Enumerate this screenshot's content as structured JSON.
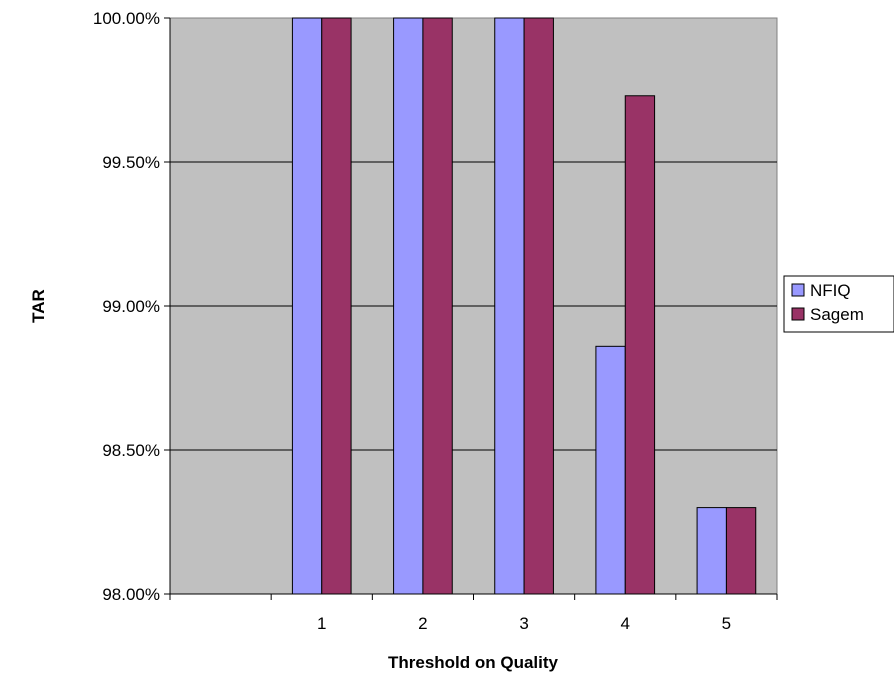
{
  "chart_data": {
    "type": "bar",
    "categories": [
      "",
      "1",
      "2",
      "3",
      "4",
      "5"
    ],
    "series": [
      {
        "name": "NFIQ",
        "color": "#9999ff",
        "values": [
          null,
          100.0,
          100.0,
          100.0,
          98.86,
          98.3
        ]
      },
      {
        "name": "Sagem",
        "color": "#993366",
        "values": [
          null,
          100.0,
          100.0,
          100.0,
          99.73,
          98.3
        ]
      }
    ],
    "xlabel": "Threshold on Quality",
    "ylabel": "TAR",
    "ylim": [
      98.0,
      100.0
    ],
    "yticks": [
      {
        "value": 98.0,
        "label": "98.00%"
      },
      {
        "value": 98.5,
        "label": "98.50%"
      },
      {
        "value": 99.0,
        "label": "99.00%"
      },
      {
        "value": 99.5,
        "label": "99.50%"
      },
      {
        "value": 100.0,
        "label": "100.00%"
      }
    ],
    "grid": true,
    "plot_background": "#c0c0c0",
    "legend_position": "right"
  }
}
